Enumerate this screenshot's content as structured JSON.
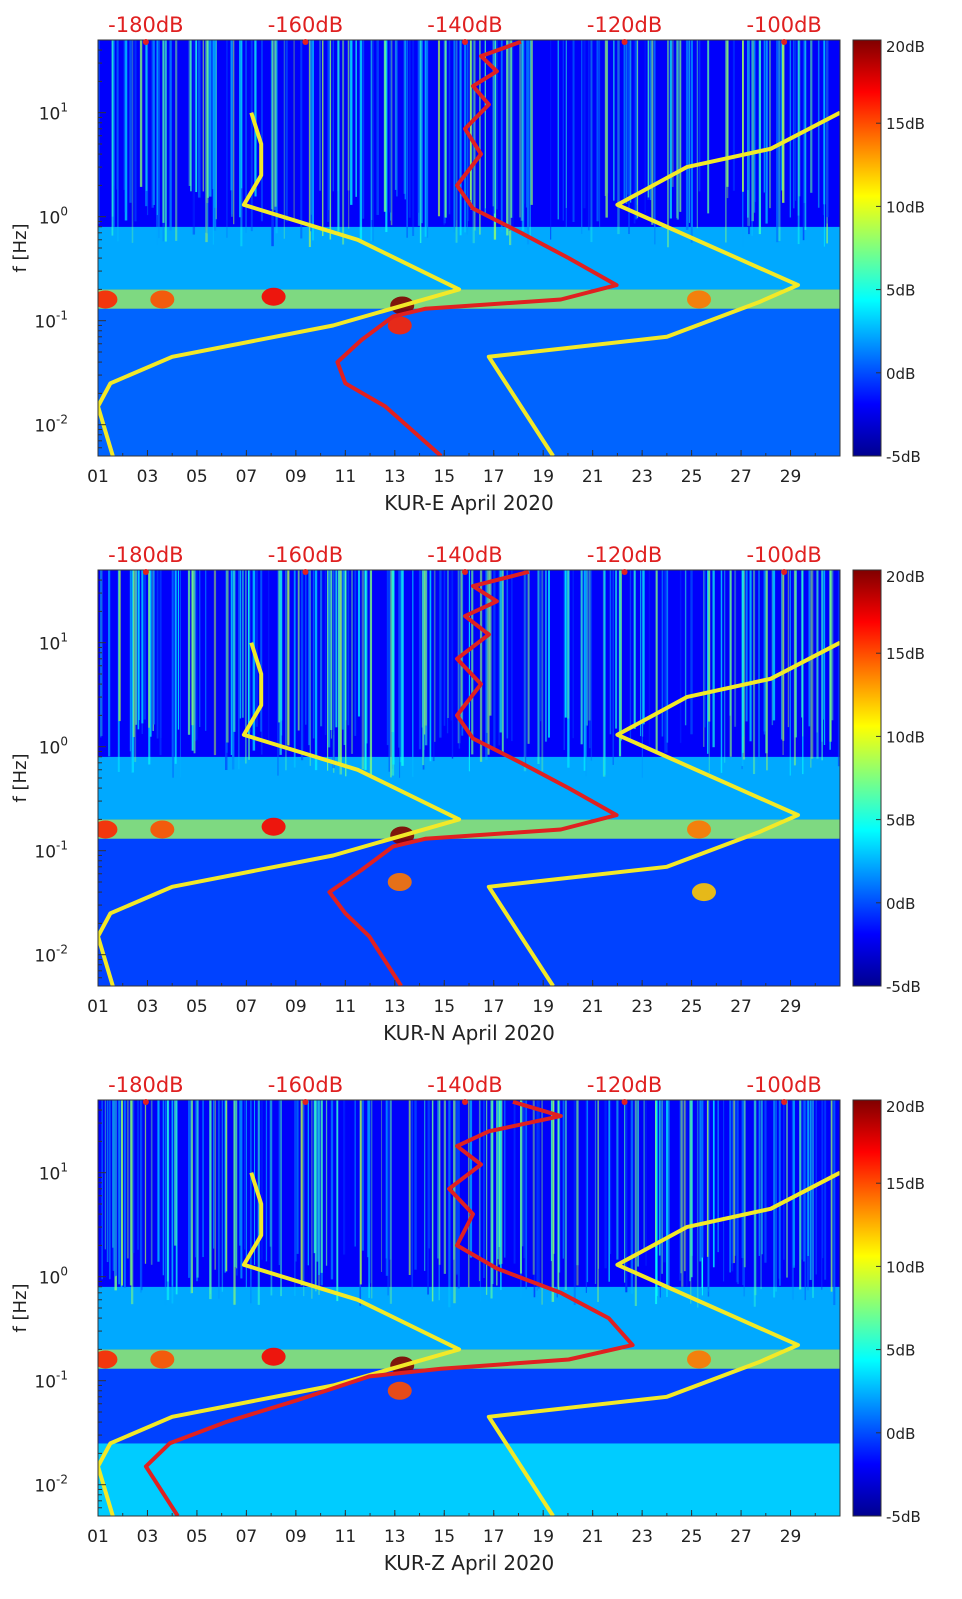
{
  "chart_data": [
    {
      "type": "heatmap",
      "title": "KUR-E April 2020",
      "xlabel": "KUR-E April 2020",
      "ylabel": "f [Hz]",
      "x_ticks": [
        "01",
        "03",
        "05",
        "07",
        "09",
        "11",
        "13",
        "15",
        "17",
        "19",
        "21",
        "23",
        "25",
        "27",
        "29"
      ],
      "y_ticks": [
        {
          "value": 0.01,
          "base": "10",
          "exp": "-2"
        },
        {
          "value": 0.1,
          "base": "10",
          "exp": "-1"
        },
        {
          "value": 1,
          "base": "10",
          "exp": "0"
        },
        {
          "value": 10,
          "base": "10",
          "exp": "1"
        }
      ],
      "top_axis_ticks": [
        "-180dB",
        "-160dB",
        "-140dB",
        "-120dB",
        "-100dB"
      ],
      "top_axis_range_db": [
        -186,
        -93
      ],
      "xlim_days": [
        1,
        31
      ],
      "ylim_hz": [
        0.005,
        50
      ],
      "colorbar": {
        "ticks": [
          "20dB",
          "15dB",
          "10dB",
          "5dB",
          "0dB",
          "-5dB"
        ],
        "range": [
          -5,
          20
        ]
      },
      "heat_bands": [
        {
          "f": [
            0.13,
            0.2
          ],
          "t": [
            1,
            31
          ],
          "level": 8
        },
        {
          "f": [
            0.2,
            0.8
          ],
          "t": [
            1,
            31
          ],
          "level": 3
        },
        {
          "f": [
            0.8,
            50
          ],
          "t": [
            1,
            31
          ],
          "level": -2
        },
        {
          "f": [
            0.005,
            0.13
          ],
          "t": [
            1,
            31
          ],
          "level": 1
        }
      ],
      "hotspots": [
        {
          "day": 1.3,
          "f": 0.16,
          "level": 16
        },
        {
          "day": 3.6,
          "f": 0.16,
          "level": 15
        },
        {
          "day": 8.1,
          "f": 0.17,
          "level": 17
        },
        {
          "day": 13.3,
          "f": 0.14,
          "level": 20
        },
        {
          "day": 13.2,
          "f": 0.09,
          "level": 16
        },
        {
          "day": 25.3,
          "f": 0.16,
          "level": 14
        }
      ],
      "series": [
        {
          "name": "low noise model (yellow, left)",
          "color": "#f2e928",
          "points": [
            [
              7.2,
              10
            ],
            [
              7.6,
              5
            ],
            [
              7.6,
              2.5
            ],
            [
              6.9,
              1.3
            ],
            [
              11.5,
              0.6
            ],
            [
              15.6,
              0.2
            ],
            [
              10.5,
              0.09
            ],
            [
              4.0,
              0.045
            ],
            [
              1.5,
              0.025
            ],
            [
              1.0,
              0.015
            ],
            [
              1.6,
              0.005
            ]
          ]
        },
        {
          "name": "high noise model (yellow, right)",
          "color": "#f2e928",
          "points": [
            [
              31.0,
              10
            ],
            [
              28.2,
              4.5
            ],
            [
              24.8,
              3.0
            ],
            [
              22.0,
              1.3
            ],
            [
              29.3,
              0.22
            ],
            [
              27.7,
              0.15
            ],
            [
              24.0,
              0.07
            ],
            [
              16.8,
              0.045
            ],
            [
              19.4,
              0.005
            ]
          ]
        },
        {
          "name": "instrument self-noise (red, dB top axis)",
          "color": "#e02020",
          "points": [
            [
              -133,
              48
            ],
            [
              -138,
              35
            ],
            [
              -136,
              25
            ],
            [
              -139,
              18
            ],
            [
              -137,
              12
            ],
            [
              -140,
              7
            ],
            [
              -138,
              4
            ],
            [
              -141,
              2
            ],
            [
              -139,
              1.2
            ],
            [
              -133,
              0.7
            ],
            [
              -127,
              0.4
            ],
            [
              -121,
              0.22
            ],
            [
              -128,
              0.16
            ],
            [
              -145,
              0.13
            ],
            [
              -149,
              0.11
            ],
            [
              -153,
              0.065
            ],
            [
              -156,
              0.04
            ],
            [
              -155,
              0.025
            ],
            [
              -150,
              0.015
            ],
            [
              -143,
              0.005
            ]
          ]
        }
      ]
    },
    {
      "type": "heatmap",
      "title": "KUR-N April 2020",
      "xlabel": "KUR-N April 2020",
      "ylabel": "f [Hz]",
      "x_ticks": [
        "01",
        "03",
        "05",
        "07",
        "09",
        "11",
        "13",
        "15",
        "17",
        "19",
        "21",
        "23",
        "25",
        "27",
        "29"
      ],
      "y_ticks": [
        {
          "value": 0.01,
          "base": "10",
          "exp": "-2"
        },
        {
          "value": 0.1,
          "base": "10",
          "exp": "-1"
        },
        {
          "value": 1,
          "base": "10",
          "exp": "0"
        },
        {
          "value": 10,
          "base": "10",
          "exp": "1"
        }
      ],
      "top_axis_ticks": [
        "-180dB",
        "-160dB",
        "-140dB",
        "-120dB",
        "-100dB"
      ],
      "top_axis_range_db": [
        -186,
        -93
      ],
      "xlim_days": [
        1,
        31
      ],
      "ylim_hz": [
        0.005,
        50
      ],
      "colorbar": {
        "ticks": [
          "20dB",
          "15dB",
          "10dB",
          "5dB",
          "0dB",
          "-5dB"
        ],
        "range": [
          -5,
          20
        ]
      },
      "heat_bands": [
        {
          "f": [
            0.13,
            0.2
          ],
          "t": [
            1,
            31
          ],
          "level": 8
        },
        {
          "f": [
            0.2,
            0.8
          ],
          "t": [
            1,
            31
          ],
          "level": 3
        },
        {
          "f": [
            0.8,
            50
          ],
          "t": [
            1,
            31
          ],
          "level": -2
        },
        {
          "f": [
            0.005,
            0.13
          ],
          "t": [
            1,
            31
          ],
          "level": 0
        }
      ],
      "hotspots": [
        {
          "day": 1.3,
          "f": 0.16,
          "level": 16
        },
        {
          "day": 3.6,
          "f": 0.16,
          "level": 15
        },
        {
          "day": 8.1,
          "f": 0.17,
          "level": 17
        },
        {
          "day": 13.3,
          "f": 0.14,
          "level": 20
        },
        {
          "day": 13.2,
          "f": 0.05,
          "level": 14
        },
        {
          "day": 25.3,
          "f": 0.16,
          "level": 14
        },
        {
          "day": 25.5,
          "f": 0.04,
          "level": 12
        }
      ],
      "series": [
        {
          "name": "low noise model (yellow, left)",
          "color": "#f2e928",
          "points": [
            [
              7.2,
              10
            ],
            [
              7.6,
              5
            ],
            [
              7.6,
              2.5
            ],
            [
              6.9,
              1.3
            ],
            [
              11.5,
              0.6
            ],
            [
              15.6,
              0.2
            ],
            [
              10.5,
              0.09
            ],
            [
              4.0,
              0.045
            ],
            [
              1.5,
              0.025
            ],
            [
              1.0,
              0.015
            ],
            [
              1.6,
              0.005
            ]
          ]
        },
        {
          "name": "high noise model (yellow, right)",
          "color": "#f2e928",
          "points": [
            [
              31.0,
              10
            ],
            [
              28.2,
              4.5
            ],
            [
              24.8,
              3.0
            ],
            [
              22.0,
              1.3
            ],
            [
              29.3,
              0.22
            ],
            [
              27.7,
              0.15
            ],
            [
              24.0,
              0.07
            ],
            [
              16.8,
              0.045
            ],
            [
              19.4,
              0.005
            ]
          ]
        },
        {
          "name": "instrument self-noise (red, dB top axis)",
          "color": "#e02020",
          "points": [
            [
              -132,
              48
            ],
            [
              -139,
              35
            ],
            [
              -136,
              25
            ],
            [
              -140,
              18
            ],
            [
              -137,
              12
            ],
            [
              -141,
              7
            ],
            [
              -138,
              4
            ],
            [
              -141,
              2
            ],
            [
              -139,
              1.2
            ],
            [
              -133,
              0.7
            ],
            [
              -127,
              0.4
            ],
            [
              -121,
              0.22
            ],
            [
              -128,
              0.16
            ],
            [
              -145,
              0.13
            ],
            [
              -149,
              0.11
            ],
            [
              -153,
              0.065
            ],
            [
              -157,
              0.04
            ],
            [
              -155,
              0.025
            ],
            [
              -152,
              0.015
            ],
            [
              -148,
              0.005
            ]
          ]
        }
      ]
    },
    {
      "type": "heatmap",
      "title": "KUR-Z April 2020",
      "xlabel": "KUR-Z April 2020",
      "ylabel": "f [Hz]",
      "x_ticks": [
        "01",
        "03",
        "05",
        "07",
        "09",
        "11",
        "13",
        "15",
        "17",
        "19",
        "21",
        "23",
        "25",
        "27",
        "29"
      ],
      "y_ticks": [
        {
          "value": 0.01,
          "base": "10",
          "exp": "-2"
        },
        {
          "value": 0.1,
          "base": "10",
          "exp": "-1"
        },
        {
          "value": 1,
          "base": "10",
          "exp": "0"
        },
        {
          "value": 10,
          "base": "10",
          "exp": "1"
        }
      ],
      "top_axis_ticks": [
        "-180dB",
        "-160dB",
        "-140dB",
        "-120dB",
        "-100dB"
      ],
      "top_axis_range_db": [
        -186,
        -93
      ],
      "xlim_days": [
        1,
        31
      ],
      "ylim_hz": [
        0.005,
        50
      ],
      "colorbar": {
        "ticks": [
          "20dB",
          "15dB",
          "10dB",
          "5dB",
          "0dB",
          "-5dB"
        ],
        "range": [
          -5,
          20
        ]
      },
      "heat_bands": [
        {
          "f": [
            0.13,
            0.2
          ],
          "t": [
            1,
            31
          ],
          "level": 8
        },
        {
          "f": [
            0.2,
            0.8
          ],
          "t": [
            1,
            31
          ],
          "level": 3
        },
        {
          "f": [
            0.8,
            50
          ],
          "t": [
            1,
            31
          ],
          "level": -2
        },
        {
          "f": [
            0.005,
            0.025
          ],
          "t": [
            1,
            31
          ],
          "level": 4
        },
        {
          "f": [
            0.025,
            0.13
          ],
          "t": [
            1,
            31
          ],
          "level": 0
        }
      ],
      "hotspots": [
        {
          "day": 1.3,
          "f": 0.16,
          "level": 16
        },
        {
          "day": 3.6,
          "f": 0.16,
          "level": 15
        },
        {
          "day": 8.1,
          "f": 0.17,
          "level": 17
        },
        {
          "day": 13.3,
          "f": 0.14,
          "level": 20
        },
        {
          "day": 13.2,
          "f": 0.08,
          "level": 15
        },
        {
          "day": 25.3,
          "f": 0.16,
          "level": 14
        }
      ],
      "series": [
        {
          "name": "low noise model (yellow, left)",
          "color": "#f2e928",
          "points": [
            [
              7.2,
              10
            ],
            [
              7.6,
              5
            ],
            [
              7.6,
              2.5
            ],
            [
              6.9,
              1.3
            ],
            [
              11.5,
              0.6
            ],
            [
              15.6,
              0.2
            ],
            [
              10.5,
              0.09
            ],
            [
              4.0,
              0.045
            ],
            [
              1.5,
              0.025
            ],
            [
              1.0,
              0.015
            ],
            [
              1.6,
              0.005
            ]
          ]
        },
        {
          "name": "high noise model (yellow, right)",
          "color": "#f2e928",
          "points": [
            [
              31.0,
              10
            ],
            [
              28.2,
              4.5
            ],
            [
              24.8,
              3.0
            ],
            [
              22.0,
              1.3
            ],
            [
              29.3,
              0.22
            ],
            [
              27.7,
              0.15
            ],
            [
              24.0,
              0.07
            ],
            [
              16.8,
              0.045
            ],
            [
              19.4,
              0.005
            ]
          ]
        },
        {
          "name": "instrument self-noise (red, dB top axis)",
          "color": "#e02020",
          "points": [
            [
              -134,
              48
            ],
            [
              -128,
              35
            ],
            [
              -137,
              25
            ],
            [
              -141,
              18
            ],
            [
              -138,
              12
            ],
            [
              -142,
              7
            ],
            [
              -139,
              4
            ],
            [
              -141,
              2
            ],
            [
              -136,
              1.2
            ],
            [
              -128,
              0.7
            ],
            [
              -122,
              0.4
            ],
            [
              -119,
              0.22
            ],
            [
              -127,
              0.16
            ],
            [
              -143,
              0.13
            ],
            [
              -152,
              0.11
            ],
            [
              -161,
              0.065
            ],
            [
              -170,
              0.04
            ],
            [
              -177,
              0.025
            ],
            [
              -180,
              0.015
            ],
            [
              -176,
              0.005
            ]
          ]
        }
      ]
    }
  ]
}
